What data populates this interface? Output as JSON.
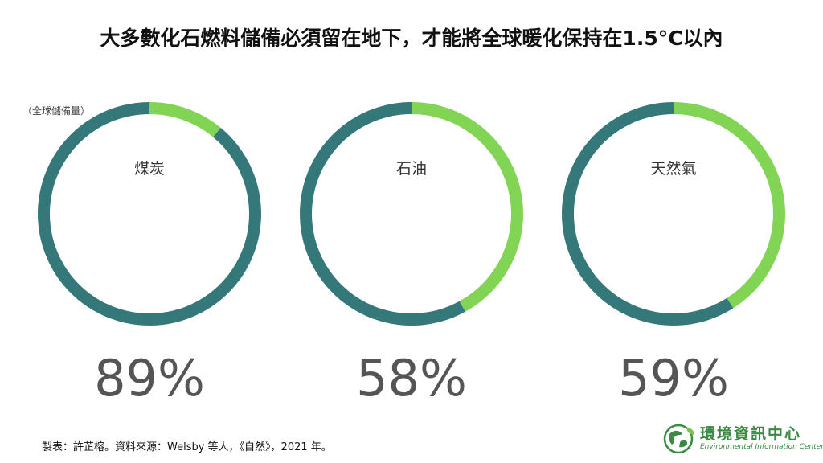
{
  "title": "大多數化石燃料儲備必須留在地下，才能將全球暖化保持在1.5°C以內",
  "unit_note": "（全球儲備量）",
  "footer": "製表：許芷榕。資料來源：Welsby 等人，《自然》，2021 年。",
  "logo": {
    "title": "環境資訊中心",
    "subtitle": "Environmental Information Center"
  },
  "colors": {
    "remaining": "#34787a",
    "usable": "#82d454"
  },
  "chart_data": [
    {
      "type": "pie",
      "name": "煤炭",
      "percent_label": "89%",
      "values": [
        89,
        11
      ]
    },
    {
      "type": "pie",
      "name": "石油",
      "percent_label": "58%",
      "values": [
        58,
        42
      ]
    },
    {
      "type": "pie",
      "name": "天然氣",
      "percent_label": "59%",
      "values": [
        59,
        41
      ]
    }
  ]
}
